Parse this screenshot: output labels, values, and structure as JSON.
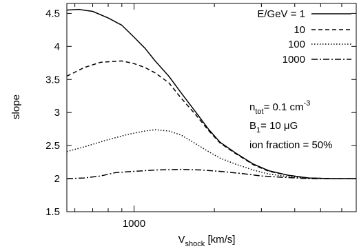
{
  "chart_data": {
    "type": "line",
    "title": "",
    "xlabel": {
      "main": "V",
      "sub": "shock",
      "rest": " [km/s]"
    },
    "ylabel": "slope",
    "x_scale": "log",
    "xlim": [
      560,
      6800
    ],
    "ylim": [
      1.5,
      4.65
    ],
    "x_ticks": [
      1000
    ],
    "x_tick_labels": [
      "1000"
    ],
    "y_ticks": [
      1.5,
      2,
      2.5,
      3,
      3.5,
      4,
      4.5
    ],
    "y_tick_labels": [
      "1.5",
      "2",
      "2.5",
      "3",
      "3.5",
      "4",
      "4.5"
    ],
    "grid": false,
    "legend": {
      "placement": "top-right",
      "header": "E/GeV =",
      "entries": [
        "1",
        "10",
        "100",
        "1000"
      ]
    },
    "annotations": [
      {
        "parts": [
          {
            "t": "n"
          },
          {
            "t": "tot",
            "s": "sub"
          },
          {
            "t": "= 0.1 cm"
          },
          {
            "t": "-3",
            "s": "sup"
          }
        ]
      },
      {
        "parts": [
          {
            "t": "B"
          },
          {
            "t": "1",
            "s": "sub"
          },
          {
            "t": "= 10 μG"
          }
        ]
      },
      {
        "parts": [
          {
            "t": "ion fraction = 50%"
          }
        ]
      }
    ],
    "series": [
      {
        "name": "1",
        "dash": "",
        "points": [
          [
            560,
            4.55
          ],
          [
            620,
            4.56
          ],
          [
            700,
            4.53
          ],
          [
            800,
            4.43
          ],
          [
            900,
            4.32
          ],
          [
            1000,
            4.14
          ],
          [
            1100,
            3.97
          ],
          [
            1200,
            3.78
          ],
          [
            1350,
            3.55
          ],
          [
            1500,
            3.3
          ],
          [
            1700,
            3.01
          ],
          [
            1900,
            2.75
          ],
          [
            2100,
            2.55
          ],
          [
            2400,
            2.39
          ],
          [
            2800,
            2.22
          ],
          [
            3200,
            2.12
          ],
          [
            3800,
            2.05
          ],
          [
            4500,
            2.01
          ],
          [
            5500,
            2.0
          ],
          [
            6800,
            2.0
          ]
        ]
      },
      {
        "name": "10",
        "dash": "6,4",
        "points": [
          [
            560,
            3.55
          ],
          [
            650,
            3.68
          ],
          [
            750,
            3.76
          ],
          [
            900,
            3.78
          ],
          [
            1000,
            3.74
          ],
          [
            1100,
            3.68
          ],
          [
            1200,
            3.6
          ],
          [
            1350,
            3.45
          ],
          [
            1500,
            3.22
          ],
          [
            1700,
            2.97
          ],
          [
            1900,
            2.73
          ],
          [
            2100,
            2.54
          ],
          [
            2400,
            2.38
          ],
          [
            2800,
            2.21
          ],
          [
            3200,
            2.11
          ],
          [
            3800,
            2.05
          ],
          [
            4500,
            2.01
          ],
          [
            5500,
            2.0
          ],
          [
            6800,
            2.0
          ]
        ]
      },
      {
        "name": "100",
        "dash": "1.5,2.5",
        "points": [
          [
            560,
            2.41
          ],
          [
            650,
            2.48
          ],
          [
            800,
            2.59
          ],
          [
            950,
            2.67
          ],
          [
            1100,
            2.72
          ],
          [
            1200,
            2.74
          ],
          [
            1350,
            2.72
          ],
          [
            1500,
            2.66
          ],
          [
            1700,
            2.53
          ],
          [
            1900,
            2.41
          ],
          [
            2100,
            2.31
          ],
          [
            2400,
            2.22
          ],
          [
            2800,
            2.13
          ],
          [
            3200,
            2.07
          ],
          [
            3800,
            2.03
          ],
          [
            4500,
            2.01
          ],
          [
            5500,
            2.0
          ],
          [
            6800,
            2.0
          ]
        ]
      },
      {
        "name": "1000",
        "dash": "9,3,2,3",
        "points": [
          [
            560,
            2.0
          ],
          [
            650,
            2.01
          ],
          [
            750,
            2.04
          ],
          [
            850,
            2.09
          ],
          [
            1000,
            2.11
          ],
          [
            1200,
            2.13
          ],
          [
            1500,
            2.14
          ],
          [
            1800,
            2.13
          ],
          [
            2100,
            2.11
          ],
          [
            2500,
            2.08
          ],
          [
            3000,
            2.04
          ],
          [
            3600,
            2.02
          ],
          [
            4500,
            2.0
          ],
          [
            5500,
            2.0
          ],
          [
            6800,
            2.0
          ]
        ]
      }
    ]
  }
}
